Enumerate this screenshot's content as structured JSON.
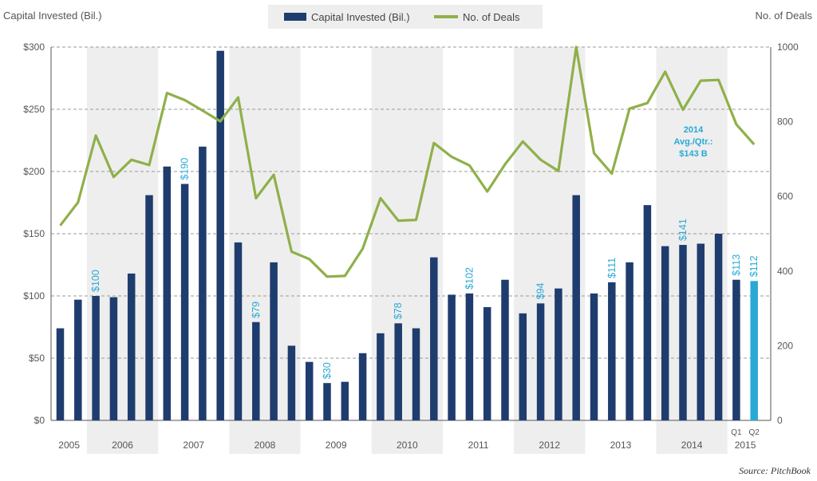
{
  "chart_data": {
    "type": "bar",
    "title": "",
    "ylabel_left": "Capital Invested (Bil.)",
    "ylabel_right": "No. of Deals",
    "source": "Source: PitchBook",
    "legend": {
      "placement": "top-center",
      "items": [
        {
          "name": "Capital Invested (Bil.)",
          "color": "#1f3c6e",
          "kind": "bar"
        },
        {
          "name": "No. of Deals",
          "color": "#8fb04a",
          "kind": "line"
        }
      ]
    },
    "colors": {
      "bar": "#1f3c6e",
      "bar_highlight": "#29a9d6",
      "line": "#8fb04a",
      "band": "#eeeeee",
      "label": "#29a9d6"
    },
    "ylim_left": [
      0,
      300
    ],
    "ylim_right": [
      0,
      1000
    ],
    "left_ticks": [
      "$0",
      "$50",
      "$100",
      "$150",
      "$200",
      "$250",
      "$300"
    ],
    "left_tick_values": [
      0,
      50,
      100,
      150,
      200,
      250,
      300
    ],
    "right_ticks": [
      "0",
      "200",
      "400",
      "600",
      "800",
      "1000"
    ],
    "right_tick_values": [
      0,
      200,
      400,
      600,
      800,
      1000
    ],
    "grid": true,
    "years": [
      "2005",
      "2006",
      "2007",
      "2008",
      "2009",
      "2010",
      "2011",
      "2012",
      "2013",
      "2014",
      "2015"
    ],
    "year_band_shaded": [
      false,
      true,
      false,
      true,
      false,
      true,
      false,
      true,
      false,
      true,
      false
    ],
    "quarters_per_year": [
      2,
      4,
      4,
      4,
      4,
      4,
      4,
      4,
      4,
      4,
      2
    ],
    "quarter_labels_2015": [
      "Q1",
      "Q2"
    ],
    "series": [
      {
        "name": "Capital Invested (Bil.)",
        "values": [
          74,
          97,
          100,
          99,
          118,
          181,
          204,
          190,
          220,
          297,
          143,
          79,
          127,
          60,
          47,
          30,
          31,
          54,
          70,
          78,
          74,
          131,
          101,
          102,
          91,
          113,
          86,
          94,
          106,
          181,
          102,
          111,
          127,
          173,
          140,
          141,
          142,
          150,
          113,
          112
        ]
      },
      {
        "name": "No. of Deals",
        "values": [
          522,
          584,
          763,
          652,
          698,
          684,
          877,
          858,
          830,
          801,
          865,
          595,
          658,
          452,
          432,
          385,
          387,
          460,
          595,
          535,
          537,
          743,
          706,
          683,
          613,
          686,
          747,
          698,
          668,
          1000,
          716,
          661,
          835,
          850,
          934,
          832,
          910,
          912,
          793,
          739
        ]
      }
    ],
    "bar_labels": [
      {
        "index": 2,
        "text": "$100"
      },
      {
        "index": 7,
        "text": "$190"
      },
      {
        "index": 11,
        "text": "$79"
      },
      {
        "index": 15,
        "text": "$30"
      },
      {
        "index": 19,
        "text": "$78"
      },
      {
        "index": 23,
        "text": "$102"
      },
      {
        "index": 27,
        "text": "$94"
      },
      {
        "index": 31,
        "text": "$111"
      },
      {
        "index": 35,
        "text": "$141"
      },
      {
        "index": 38,
        "text": "$113"
      },
      {
        "index": 39,
        "text": "$112"
      }
    ],
    "highlight_bar_index": 39,
    "annotation": {
      "lines": [
        "2014",
        "Avg./Qtr.:",
        "$143 B"
      ]
    }
  }
}
